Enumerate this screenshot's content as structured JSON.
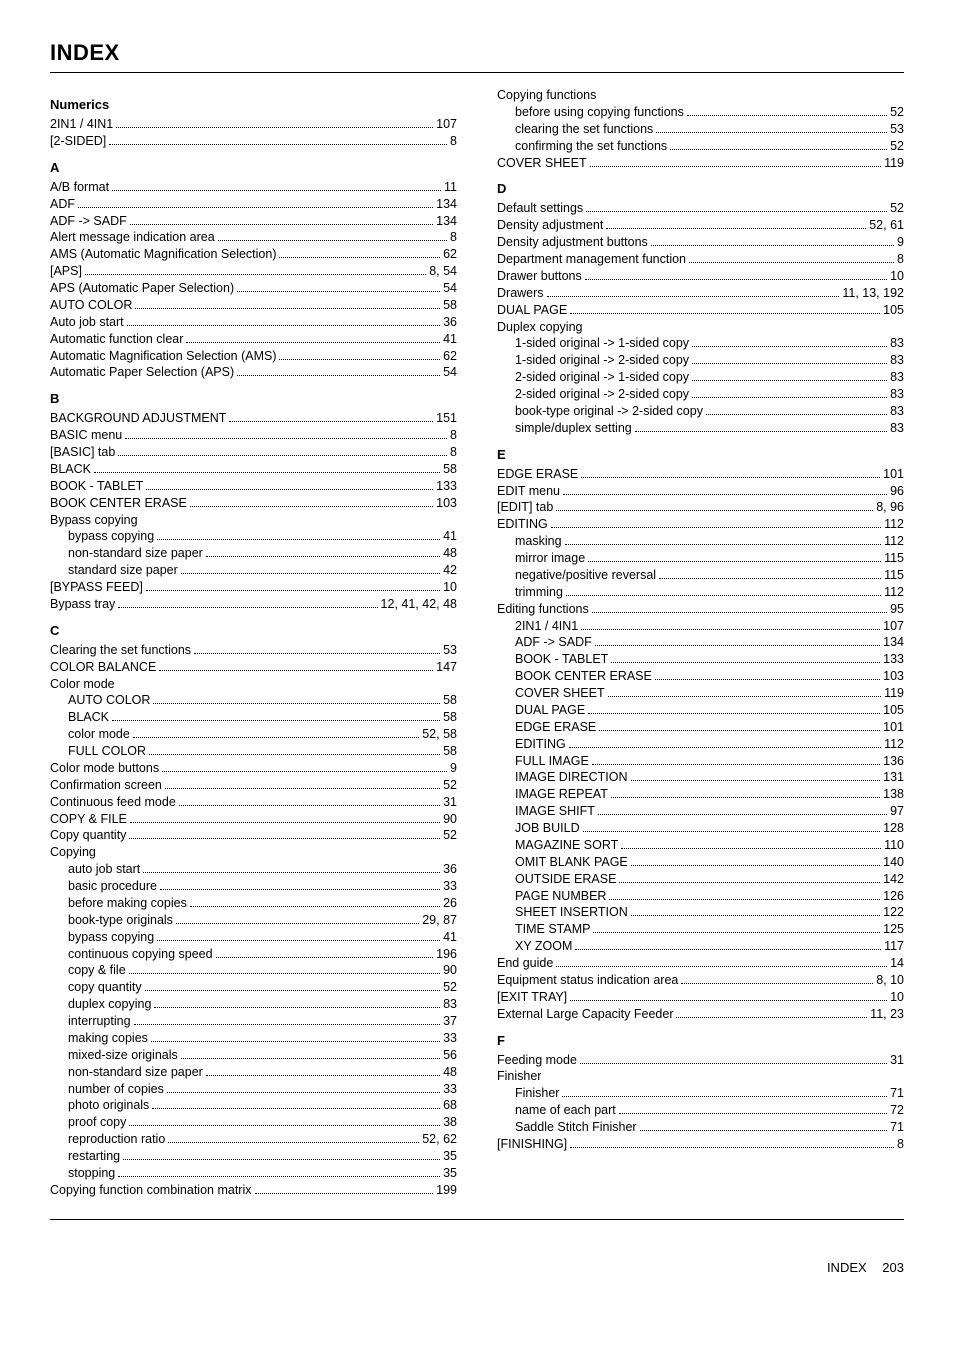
{
  "title": "INDEX",
  "footer_label": "INDEX",
  "footer_page": "203",
  "left": [
    {
      "type": "head",
      "text": "Numerics"
    },
    {
      "type": "entry",
      "label": "2IN1 / 4IN1",
      "page": "107"
    },
    {
      "type": "entry",
      "label": "[2-SIDED]",
      "page": "8"
    },
    {
      "type": "head",
      "text": "A"
    },
    {
      "type": "entry",
      "label": "A/B format",
      "page": "11"
    },
    {
      "type": "entry",
      "label": "ADF",
      "page": "134"
    },
    {
      "type": "entry",
      "label": "ADF -> SADF",
      "page": "134"
    },
    {
      "type": "entry",
      "label": "Alert message indication area",
      "page": "8"
    },
    {
      "type": "entry",
      "label": "AMS (Automatic Magnification Selection)",
      "page": "62"
    },
    {
      "type": "entry",
      "label": "[APS]",
      "page": "8, 54"
    },
    {
      "type": "entry",
      "label": "APS (Automatic Paper Selection)",
      "page": "54"
    },
    {
      "type": "entry",
      "label": "AUTO COLOR",
      "page": "58"
    },
    {
      "type": "entry",
      "label": "Auto job start",
      "page": "36"
    },
    {
      "type": "entry",
      "label": "Automatic function clear",
      "page": "41"
    },
    {
      "type": "entry",
      "label": "Automatic Magnification Selection (AMS)",
      "page": "62"
    },
    {
      "type": "entry",
      "label": "Automatic Paper Selection (APS)",
      "page": "54"
    },
    {
      "type": "head",
      "text": "B"
    },
    {
      "type": "entry",
      "label": "BACKGROUND ADJUSTMENT",
      "page": "151"
    },
    {
      "type": "entry",
      "label": "BASIC menu",
      "page": "8"
    },
    {
      "type": "entry",
      "label": "[BASIC] tab",
      "page": "8"
    },
    {
      "type": "entry",
      "label": "BLACK",
      "page": "58"
    },
    {
      "type": "entry",
      "label": "BOOK - TABLET",
      "page": "133"
    },
    {
      "type": "entry",
      "label": "BOOK CENTER ERASE",
      "page": "103"
    },
    {
      "type": "plain",
      "text": "Bypass copying"
    },
    {
      "type": "entry",
      "indent": 1,
      "label": "bypass copying",
      "page": "41"
    },
    {
      "type": "entry",
      "indent": 1,
      "label": "non-standard size paper",
      "page": "48"
    },
    {
      "type": "entry",
      "indent": 1,
      "label": "standard size paper",
      "page": "42"
    },
    {
      "type": "entry",
      "label": "[BYPASS FEED]",
      "page": "10"
    },
    {
      "type": "entry",
      "label": "Bypass tray",
      "page": "12, 41, 42, 48"
    },
    {
      "type": "head",
      "text": "C"
    },
    {
      "type": "entry",
      "label": "Clearing the set functions",
      "page": "53"
    },
    {
      "type": "entry",
      "label": "COLOR BALANCE",
      "page": "147"
    },
    {
      "type": "plain",
      "text": "Color mode"
    },
    {
      "type": "entry",
      "indent": 1,
      "label": "AUTO COLOR",
      "page": "58"
    },
    {
      "type": "entry",
      "indent": 1,
      "label": "BLACK",
      "page": "58"
    },
    {
      "type": "entry",
      "indent": 1,
      "label": "color mode",
      "page": "52, 58"
    },
    {
      "type": "entry",
      "indent": 1,
      "label": "FULL COLOR",
      "page": "58"
    },
    {
      "type": "entry",
      "label": "Color mode buttons",
      "page": "9"
    },
    {
      "type": "entry",
      "label": "Confirmation screen",
      "page": "52"
    },
    {
      "type": "entry",
      "label": "Continuous feed mode",
      "page": "31"
    },
    {
      "type": "entry",
      "label": "COPY & FILE",
      "page": "90"
    },
    {
      "type": "entry",
      "label": "Copy quantity",
      "page": "52"
    },
    {
      "type": "plain",
      "text": "Copying"
    },
    {
      "type": "entry",
      "indent": 1,
      "label": "auto job start",
      "page": "36"
    },
    {
      "type": "entry",
      "indent": 1,
      "label": "basic procedure",
      "page": "33"
    },
    {
      "type": "entry",
      "indent": 1,
      "label": "before making copies",
      "page": "26"
    },
    {
      "type": "entry",
      "indent": 1,
      "label": "book-type originals",
      "page": "29, 87"
    },
    {
      "type": "entry",
      "indent": 1,
      "label": "bypass copying",
      "page": "41"
    },
    {
      "type": "entry",
      "indent": 1,
      "label": "continuous copying speed",
      "page": "196"
    },
    {
      "type": "entry",
      "indent": 1,
      "label": "copy & file",
      "page": "90"
    },
    {
      "type": "entry",
      "indent": 1,
      "label": "copy quantity",
      "page": "52"
    },
    {
      "type": "entry",
      "indent": 1,
      "label": "duplex copying",
      "page": "83"
    },
    {
      "type": "entry",
      "indent": 1,
      "label": "interrupting",
      "page": "37"
    },
    {
      "type": "entry",
      "indent": 1,
      "label": "making copies",
      "page": "33"
    },
    {
      "type": "entry",
      "indent": 1,
      "label": "mixed-size originals",
      "page": "56"
    },
    {
      "type": "entry",
      "indent": 1,
      "label": "non-standard size paper",
      "page": "48"
    },
    {
      "type": "entry",
      "indent": 1,
      "label": "number of copies",
      "page": "33"
    },
    {
      "type": "entry",
      "indent": 1,
      "label": "photo originals",
      "page": "68"
    },
    {
      "type": "entry",
      "indent": 1,
      "label": "proof copy",
      "page": "38"
    },
    {
      "type": "entry",
      "indent": 1,
      "label": "reproduction ratio",
      "page": "52, 62"
    },
    {
      "type": "entry",
      "indent": 1,
      "label": "restarting",
      "page": "35"
    },
    {
      "type": "entry",
      "indent": 1,
      "label": "stopping",
      "page": "35"
    },
    {
      "type": "entry",
      "label": "Copying function combination matrix",
      "page": "199"
    }
  ],
  "right": [
    {
      "type": "plain",
      "text": "Copying functions"
    },
    {
      "type": "entry",
      "indent": 1,
      "label": "before using copying functions",
      "page": "52"
    },
    {
      "type": "entry",
      "indent": 1,
      "label": "clearing the set functions",
      "page": "53"
    },
    {
      "type": "entry",
      "indent": 1,
      "label": "confirming the set functions",
      "page": "52"
    },
    {
      "type": "entry",
      "label": "COVER SHEET",
      "page": "119"
    },
    {
      "type": "head",
      "text": "D"
    },
    {
      "type": "entry",
      "label": "Default settings",
      "page": "52"
    },
    {
      "type": "entry",
      "label": "Density adjustment",
      "page": "52, 61"
    },
    {
      "type": "entry",
      "label": "Density adjustment buttons",
      "page": "9"
    },
    {
      "type": "entry",
      "label": "Department management function",
      "page": "8"
    },
    {
      "type": "entry",
      "label": "Drawer buttons",
      "page": "10"
    },
    {
      "type": "entry",
      "label": "Drawers",
      "page": "11, 13, 192"
    },
    {
      "type": "entry",
      "label": "DUAL PAGE",
      "page": "105"
    },
    {
      "type": "plain",
      "text": "Duplex copying"
    },
    {
      "type": "entry",
      "indent": 1,
      "label": "1-sided original -> 1-sided copy",
      "page": "83"
    },
    {
      "type": "entry",
      "indent": 1,
      "label": "1-sided original -> 2-sided copy",
      "page": "83"
    },
    {
      "type": "entry",
      "indent": 1,
      "label": "2-sided original -> 1-sided copy",
      "page": "83"
    },
    {
      "type": "entry",
      "indent": 1,
      "label": "2-sided original -> 2-sided copy",
      "page": "83"
    },
    {
      "type": "entry",
      "indent": 1,
      "label": "book-type original -> 2-sided copy",
      "page": "83"
    },
    {
      "type": "entry",
      "indent": 1,
      "label": "simple/duplex setting",
      "page": "83"
    },
    {
      "type": "head",
      "text": "E"
    },
    {
      "type": "entry",
      "label": "EDGE ERASE",
      "page": "101"
    },
    {
      "type": "entry",
      "label": "EDIT menu",
      "page": "96"
    },
    {
      "type": "entry",
      "label": "[EDIT] tab",
      "page": "8, 96"
    },
    {
      "type": "entry",
      "label": "EDITING",
      "page": "112"
    },
    {
      "type": "entry",
      "indent": 1,
      "label": "masking",
      "page": "112"
    },
    {
      "type": "entry",
      "indent": 1,
      "label": "mirror image",
      "page": "115"
    },
    {
      "type": "entry",
      "indent": 1,
      "label": "negative/positive reversal",
      "page": "115"
    },
    {
      "type": "entry",
      "indent": 1,
      "label": "trimming",
      "page": "112"
    },
    {
      "type": "entry",
      "label": "Editing functions",
      "page": "95"
    },
    {
      "type": "entry",
      "indent": 1,
      "label": "2IN1 / 4IN1",
      "page": "107"
    },
    {
      "type": "entry",
      "indent": 1,
      "label": "ADF -> SADF",
      "page": "134"
    },
    {
      "type": "entry",
      "indent": 1,
      "label": "BOOK - TABLET",
      "page": "133"
    },
    {
      "type": "entry",
      "indent": 1,
      "label": "BOOK CENTER ERASE",
      "page": "103"
    },
    {
      "type": "entry",
      "indent": 1,
      "label": "COVER SHEET",
      "page": "119"
    },
    {
      "type": "entry",
      "indent": 1,
      "label": "DUAL PAGE",
      "page": "105"
    },
    {
      "type": "entry",
      "indent": 1,
      "label": "EDGE ERASE",
      "page": "101"
    },
    {
      "type": "entry",
      "indent": 1,
      "label": "EDITING",
      "page": "112"
    },
    {
      "type": "entry",
      "indent": 1,
      "label": "FULL IMAGE",
      "page": "136"
    },
    {
      "type": "entry",
      "indent": 1,
      "label": "IMAGE DIRECTION",
      "page": "131"
    },
    {
      "type": "entry",
      "indent": 1,
      "label": "IMAGE REPEAT",
      "page": "138"
    },
    {
      "type": "entry",
      "indent": 1,
      "label": "IMAGE SHIFT",
      "page": "97"
    },
    {
      "type": "entry",
      "indent": 1,
      "label": "JOB BUILD",
      "page": "128"
    },
    {
      "type": "entry",
      "indent": 1,
      "label": "MAGAZINE SORT",
      "page": "110"
    },
    {
      "type": "entry",
      "indent": 1,
      "label": "OMIT BLANK PAGE",
      "page": "140"
    },
    {
      "type": "entry",
      "indent": 1,
      "label": "OUTSIDE ERASE",
      "page": "142"
    },
    {
      "type": "entry",
      "indent": 1,
      "label": "PAGE NUMBER",
      "page": "126"
    },
    {
      "type": "entry",
      "indent": 1,
      "label": "SHEET INSERTION",
      "page": "122"
    },
    {
      "type": "entry",
      "indent": 1,
      "label": "TIME STAMP",
      "page": "125"
    },
    {
      "type": "entry",
      "indent": 1,
      "label": "XY ZOOM",
      "page": "117"
    },
    {
      "type": "entry",
      "label": "End guide",
      "page": "14"
    },
    {
      "type": "entry",
      "label": "Equipment status indication area",
      "page": "8, 10"
    },
    {
      "type": "entry",
      "label": "[EXIT TRAY]",
      "page": "10"
    },
    {
      "type": "entry",
      "label": "External Large Capacity Feeder",
      "page": "11, 23"
    },
    {
      "type": "head",
      "text": "F"
    },
    {
      "type": "entry",
      "label": "Feeding mode",
      "page": "31"
    },
    {
      "type": "plain",
      "text": "Finisher"
    },
    {
      "type": "entry",
      "indent": 1,
      "label": "Finisher",
      "page": "71"
    },
    {
      "type": "entry",
      "indent": 1,
      "label": "name of each part",
      "page": "72"
    },
    {
      "type": "entry",
      "indent": 1,
      "label": "Saddle Stitch Finisher",
      "page": "71"
    },
    {
      "type": "entry",
      "label": "[FINISHING]",
      "page": "8"
    }
  ]
}
